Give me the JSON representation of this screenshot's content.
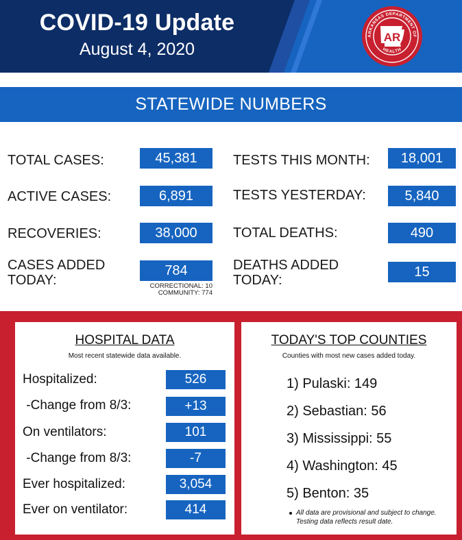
{
  "header": {
    "title": "COVID-19 Update",
    "date": "August 4, 2020",
    "logo": {
      "ring_text_top": "ARKANSAS DEPARTMENT OF",
      "ring_text_bottom": "HEALTH",
      "center_text": "AR",
      "colors": {
        "ring": "#c8202f",
        "inner": "#c8202f",
        "text": "#ffffff"
      }
    }
  },
  "banner": {
    "label": "STATEWIDE NUMBERS"
  },
  "stats": {
    "total_cases": {
      "label": "TOTAL CASES:",
      "value": "45,381"
    },
    "active_cases": {
      "label": "ACTIVE CASES:",
      "value": "6,891"
    },
    "recoveries": {
      "label": "RECOVERIES:",
      "value": "38,000"
    },
    "cases_added": {
      "label_line1": "CASES ADDED",
      "label_line2": "TODAY:",
      "value": "784",
      "note_line1": "CORRECTIONAL: 10",
      "note_line2": "COMMUNITY: 774"
    },
    "tests_month": {
      "label": "TESTS THIS MONTH:",
      "value": "18,001"
    },
    "tests_yesterday": {
      "label": "TESTS YESTERDAY:",
      "value": "5,840"
    },
    "total_deaths": {
      "label": "TOTAL DEATHS:",
      "value": "490"
    },
    "deaths_added": {
      "label_line1": "DEATHS ADDED",
      "label_line2": "TODAY:",
      "value": "15"
    }
  },
  "hospital": {
    "title": "HOSPITAL DATA",
    "subtitle": "Most recent statewide data available.",
    "rows": [
      {
        "label": "Hospitalized:",
        "value": "526"
      },
      {
        "label": " -Change from 8/3:",
        "value": "+13"
      },
      {
        "label": "On ventilators:",
        "value": "101"
      },
      {
        "label": " -Change from 8/3:",
        "value": "-7"
      },
      {
        "label": "Ever hospitalized:",
        "value": "3,054"
      },
      {
        "label": "Ever on ventilator:",
        "value": "414"
      }
    ]
  },
  "counties": {
    "title": "TODAY'S TOP COUNTIES",
    "subtitle": "Counties with most new cases added today.",
    "items": [
      "1) Pulaski: 149",
      "2) Sebastian: 56",
      "3) Mississippi: 55",
      "4) Washington: 45",
      "5) Benton: 35"
    ],
    "footnote_line1": "All data are provisional and subject to change.",
    "footnote_line2": "Testing data reflects result date."
  },
  "colors": {
    "navy": "#0d2d66",
    "blue": "#1664c0",
    "red": "#c8202f",
    "white": "#ffffff"
  }
}
